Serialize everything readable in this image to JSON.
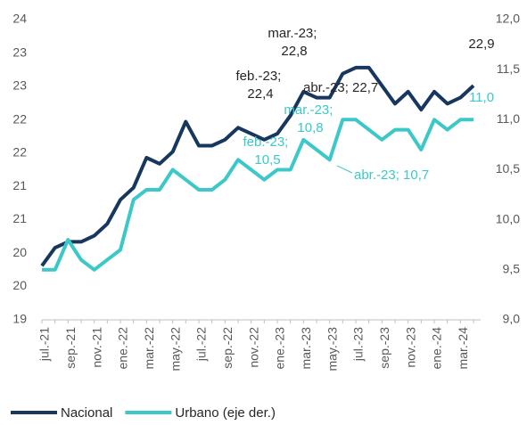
{
  "chart_data": {
    "type": "line",
    "categories": [
      "jul.-21",
      null,
      "sep.-21",
      null,
      "nov.-21",
      null,
      "ene.-22",
      null,
      "mar.-22",
      null,
      "may.-22",
      null,
      "jul.-22",
      null,
      "sep.-22",
      null,
      "nov.-22",
      null,
      "ene.-23",
      null,
      "mar.-23",
      null,
      "may.-23",
      null,
      "jul.-23",
      null,
      "sep.-23",
      null,
      "nov.-23",
      null,
      "ene.-24",
      null,
      "mar.-24",
      null
    ],
    "series": [
      {
        "name": "Nacional",
        "color": "#17375e",
        "axis": "y",
        "values": [
          19.9,
          20.2,
          20.3,
          20.3,
          20.4,
          20.6,
          21.0,
          21.2,
          21.7,
          21.6,
          21.8,
          22.3,
          21.9,
          21.9,
          22.0,
          22.2,
          22.1,
          22.0,
          22.1,
          22.4,
          22.8,
          22.7,
          22.7,
          23.1,
          23.2,
          23.2,
          22.9,
          22.6,
          22.8,
          22.5,
          22.8,
          22.6,
          22.7,
          22.9
        ],
        "value_labels": [
          null,
          null,
          null,
          null,
          null,
          null,
          null,
          null,
          null,
          null,
          null,
          null,
          null,
          null,
          null,
          null,
          null,
          null,
          null,
          "feb.-23; 22,4",
          "mar.-23; 22,8",
          "abr.-23; 22,7",
          null,
          null,
          null,
          null,
          null,
          null,
          null,
          null,
          null,
          null,
          null,
          "22,9"
        ]
      },
      {
        "name": "Urbano (eje der.)",
        "color": "#3cc8c8",
        "axis": "y2",
        "values": [
          9.5,
          9.5,
          9.8,
          9.6,
          9.5,
          9.6,
          9.7,
          10.2,
          10.3,
          10.3,
          10.5,
          10.4,
          10.3,
          10.3,
          10.4,
          10.6,
          10.5,
          10.4,
          10.5,
          10.5,
          10.8,
          10.7,
          10.6,
          11.0,
          11.0,
          10.9,
          10.8,
          10.9,
          10.9,
          10.7,
          11.0,
          10.9,
          11.0,
          11.0
        ],
        "value_labels": [
          null,
          null,
          null,
          null,
          null,
          null,
          null,
          null,
          null,
          null,
          null,
          null,
          null,
          null,
          null,
          null,
          null,
          null,
          null,
          "feb.-23; 10,5",
          "mar.-23; 10,8",
          "abr.-23; 10,7",
          null,
          null,
          null,
          null,
          null,
          null,
          null,
          null,
          null,
          null,
          null,
          "11,0"
        ]
      }
    ],
    "ylim": [
      19,
      24
    ],
    "yticks": [
      19,
      {
        "value": 19.56,
        "label": "20"
      },
      {
        "value": 20.11,
        "label": "20"
      },
      {
        "value": 20.67,
        "label": "21"
      },
      {
        "value": 21.22,
        "label": "21"
      },
      {
        "value": 21.78,
        "label": "22"
      },
      {
        "value": 22.33,
        "label": "22"
      },
      {
        "value": 22.89,
        "label": "23"
      },
      {
        "value": 23.44,
        "label": "23"
      },
      24
    ],
    "y2lim": [
      9,
      12
    ],
    "y2ticks": [
      {
        "value": 9,
        "label": "9,0"
      },
      {
        "value": 9.5,
        "label": "9,5"
      },
      {
        "value": 10,
        "label": "10,0"
      },
      {
        "value": 10.5,
        "label": "10,5"
      },
      {
        "value": 11,
        "label": "11,0"
      },
      {
        "value": 11.5,
        "label": "11,5"
      },
      {
        "value": 12,
        "label": "12,0"
      }
    ],
    "grid": false,
    "legend": "bottom"
  }
}
